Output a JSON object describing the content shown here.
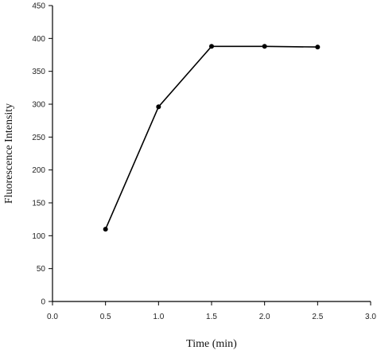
{
  "chart_data": {
    "type": "line",
    "title": "",
    "xlabel": "Time (min)",
    "ylabel": "Fluorescence Intensity",
    "xlim": [
      0,
      3.0
    ],
    "ylim": [
      0,
      450
    ],
    "x_ticks": [
      "0.0",
      "0.5",
      "1.0",
      "1.5",
      "2.0",
      "2.5",
      "3.0"
    ],
    "y_ticks": [
      "0",
      "50",
      "100",
      "150",
      "200",
      "250",
      "300",
      "350",
      "400",
      "450"
    ],
    "grid": false,
    "legend": "none",
    "series": [
      {
        "x": [
          0.5,
          1.0,
          1.5,
          2.0,
          2.5
        ],
        "y": [
          110,
          296,
          388,
          388,
          387
        ],
        "color": "#000000",
        "marker": "circle"
      }
    ]
  }
}
